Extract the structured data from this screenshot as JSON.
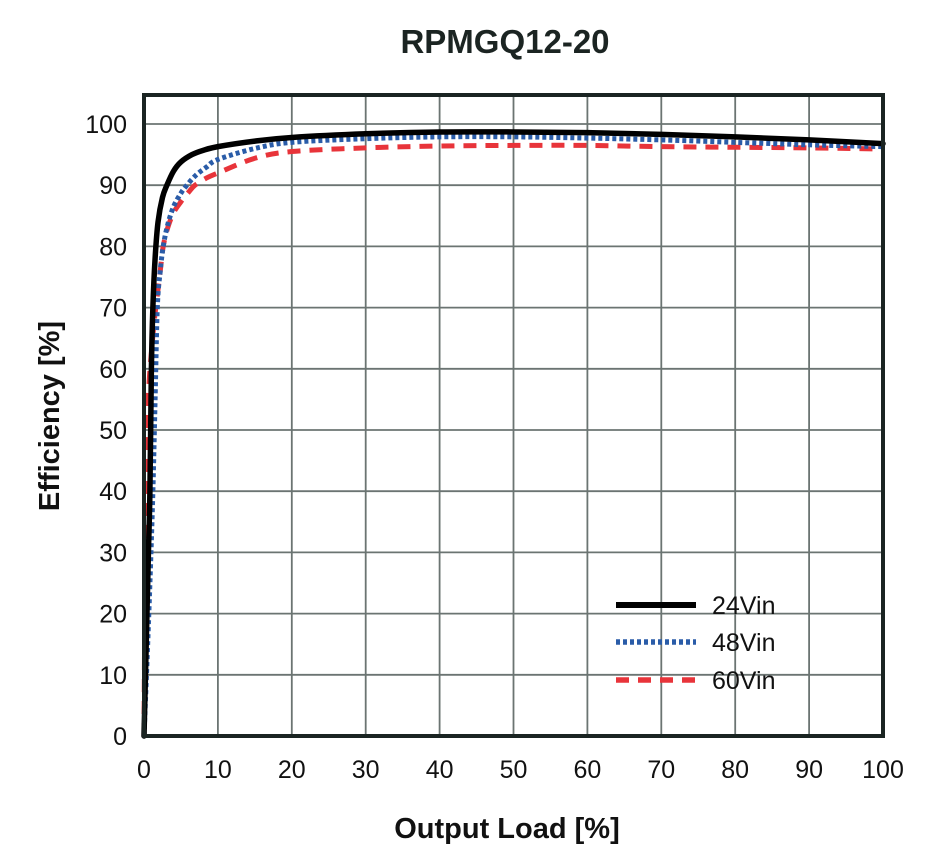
{
  "chart_data": {
    "type": "line",
    "title": "RPMGQ12-20",
    "xlabel": "Output Load [%]",
    "ylabel": "Efficiency [%]",
    "xlim": [
      0,
      100
    ],
    "ylim": [
      0,
      100
    ],
    "xticks": [
      0,
      10,
      20,
      30,
      40,
      50,
      60,
      70,
      80,
      90,
      100
    ],
    "yticks": [
      0,
      10,
      20,
      30,
      40,
      50,
      60,
      70,
      80,
      90,
      100
    ],
    "grid": true,
    "legend_position": "bottom-right",
    "series": [
      {
        "name": "24Vin",
        "color": "#000000",
        "style": "solid",
        "x": [
          0,
          0.3,
          0.6,
          0.8,
          1.0,
          1.2,
          1.5,
          1.9,
          2.5,
          3.1,
          4.0,
          5.0,
          6.5,
          8.0,
          10,
          15,
          20,
          30,
          40,
          50,
          60,
          70,
          80,
          90,
          100
        ],
        "y": [
          0,
          15,
          30,
          40,
          60,
          70,
          78,
          84,
          88,
          90,
          92.3,
          93.8,
          95.0,
          95.7,
          96.3,
          97.2,
          97.8,
          98.4,
          98.7,
          98.7,
          98.6,
          98.3,
          97.9,
          97.4,
          96.8
        ]
      },
      {
        "name": "48Vin",
        "color": "#2a5ca8",
        "style": "dotted",
        "x": [
          0,
          0.4,
          0.8,
          1.2,
          1.5,
          1.8,
          2.2,
          2.6,
          3.2,
          4.0,
          5.0,
          5.8,
          7.0,
          8.5,
          10,
          15,
          20,
          30,
          40,
          50,
          60,
          70,
          80,
          90,
          100
        ],
        "y": [
          0,
          12,
          25,
          40,
          55,
          70,
          76,
          80,
          83.5,
          86.5,
          88.7,
          90,
          91.6,
          93.0,
          94.2,
          96.0,
          97.0,
          97.6,
          97.9,
          97.9,
          97.7,
          97.4,
          97.0,
          96.6,
          96.3
        ]
      },
      {
        "name": "60Vin",
        "color": "#e8343a",
        "style": "dashed",
        "x": [
          0,
          0.1,
          0.2,
          0.4,
          0.7,
          1.1,
          1.4,
          1.8,
          2.2,
          2.6,
          3.2,
          4.0,
          5.0,
          6.0,
          6.9,
          8.5,
          10,
          15,
          20,
          30,
          40,
          50,
          60,
          70,
          80,
          90,
          100
        ],
        "y": [
          0,
          20,
          40,
          50,
          58,
          64,
          68,
          72,
          76,
          80,
          83,
          85.5,
          87.3,
          88.8,
          90,
          91.2,
          92.0,
          94.4,
          95.5,
          96.1,
          96.4,
          96.5,
          96.5,
          96.3,
          96.2,
          96.1,
          95.9
        ]
      }
    ]
  }
}
